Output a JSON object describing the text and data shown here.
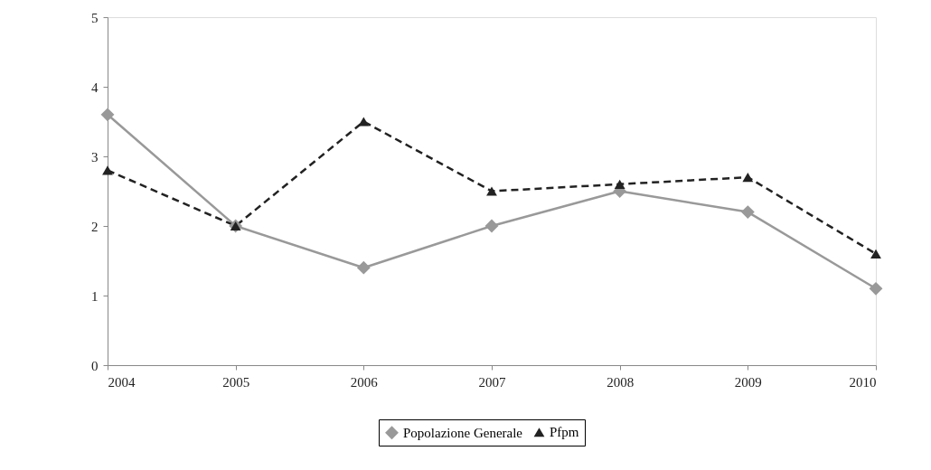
{
  "chart_data": {
    "type": "line",
    "categories": [
      "2004",
      "2005",
      "2006",
      "2007",
      "2008",
      "2009",
      "2010"
    ],
    "series": [
      {
        "name": "Popolazione Generale",
        "color": "#999999",
        "marker": "diamond",
        "line_style": "solid",
        "values": [
          3.6,
          2.0,
          1.4,
          2.0,
          2.5,
          2.2,
          1.1
        ]
      },
      {
        "name": "Pfpm",
        "color": "#222222",
        "marker": "triangle",
        "line_style": "dashed",
        "values": [
          2.8,
          2.0,
          3.5,
          2.5,
          2.6,
          2.7,
          1.6
        ]
      }
    ],
    "ylim": [
      0,
      5
    ],
    "yticks": [
      0,
      1,
      2,
      3,
      4,
      5
    ],
    "grid": false,
    "legend": "bottom"
  }
}
